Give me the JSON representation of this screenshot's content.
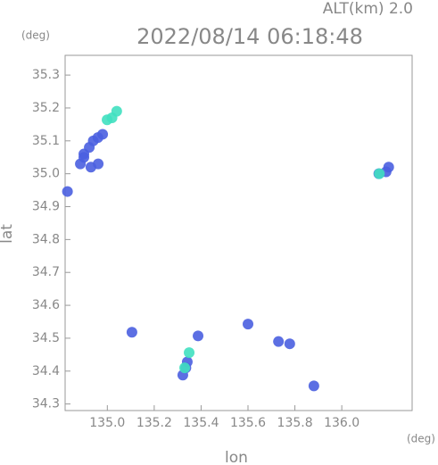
{
  "chart_data": {
    "type": "scatter",
    "title": "2022/08/14 06:18:48",
    "subtitle": "ALT(km) 2.0",
    "y_unit": "(deg)",
    "x_unit": "(deg)",
    "x_label": "lon",
    "y_label": "lat",
    "xlim": [
      134.82,
      136.3
    ],
    "ylim": [
      34.28,
      35.36
    ],
    "xticks": [
      {
        "value": 135,
        "label": "135.0"
      },
      135.2,
      135.4,
      135.6,
      135.8,
      {
        "value": 136,
        "label": "136.0"
      }
    ],
    "yticks": [
      34.3,
      34.4,
      34.5,
      34.6,
      34.7,
      34.8,
      34.9,
      {
        "value": 35,
        "label": "35.0"
      },
      35.1,
      35.2,
      35.3
    ],
    "grid": false,
    "series": [
      {
        "color": "#4a5fe0",
        "x": [
          134.885,
          134.9,
          134.923,
          134.94,
          134.96,
          134.961,
          134.98,
          134.93,
          134.9,
          134.83,
          136.158,
          136.189,
          136.2,
          135.322,
          135.341,
          135.335,
          135.387,
          135.105,
          135.73,
          135.778,
          135.881,
          135.6
        ],
        "values": [
          35.03,
          35.05,
          35.08,
          35.1,
          35.11,
          35.03,
          35.12,
          35.02,
          35.06,
          34.946,
          35.0,
          35.006,
          35.02,
          34.388,
          34.428,
          34.41,
          34.507,
          34.518,
          34.49,
          34.483,
          34.355,
          34.543
        ]
      },
      {
        "color": "#40e0c0",
        "x": [
          134.999,
          135.02,
          135.04,
          136.16,
          135.349,
          135.33
        ],
        "values": [
          35.164,
          35.17,
          35.19,
          35.0,
          34.456,
          34.41
        ]
      }
    ]
  }
}
